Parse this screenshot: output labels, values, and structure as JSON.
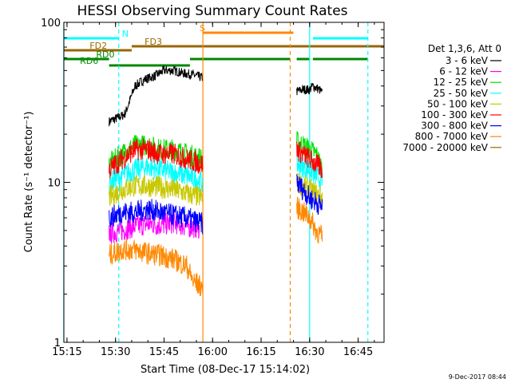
{
  "chart_data": {
    "type": "line",
    "title": "HESSI Observing Summary Count Rates",
    "xlabel": "Start Time (08-Dec-17 15:14:02)",
    "ylabel": "Count Rate (s⁻¹ detector⁻¹)",
    "y_scale": "log",
    "xlim": [
      "15:14:02",
      "16:53:00"
    ],
    "ylim": [
      1,
      100
    ],
    "x_ticks": [
      "15:15",
      "15:30",
      "15:45",
      "16:00",
      "16:15",
      "16:30",
      "16:45"
    ],
    "y_ticks": [
      "1",
      "10",
      "100"
    ],
    "legend": {
      "title": "Det 1,3,6, Att 0",
      "placement": "right",
      "entries": [
        {
          "label": "3 - 6 keV",
          "color": "#000000"
        },
        {
          "label": "6 - 12 keV",
          "color": "#ff00ff"
        },
        {
          "label": "12 - 25 keV",
          "color": "#00e000"
        },
        {
          "label": "25 - 50 keV",
          "color": "#00ffff"
        },
        {
          "label": "50 - 100 keV",
          "color": "#c8c800"
        },
        {
          "label": "100 - 300 keV",
          "color": "#ff0000"
        },
        {
          "label": "300 - 800 keV",
          "color": "#0000ff"
        },
        {
          "label": "800 - 7000 keV",
          "color": "#ff8800"
        },
        {
          "label": "7000 - 20000 keV",
          "color": "#996600"
        }
      ]
    },
    "flags": [
      {
        "label": "N",
        "color": "#00ffff",
        "segments": [
          [
            "15:14",
            "15:31"
          ],
          [
            "16:31",
            "16:48"
          ]
        ]
      },
      {
        "label": "S",
        "color": "#ff8800",
        "segments": [
          [
            "15:57",
            "16:25"
          ]
        ]
      },
      {
        "label": "FD2",
        "color": "#996600",
        "segments": [
          [
            "15:14",
            "15:35"
          ]
        ]
      },
      {
        "label": "FD3",
        "color": "#996600",
        "segments": [
          [
            "15:35",
            "16:53"
          ]
        ]
      },
      {
        "label": "RD0",
        "color": "#008800",
        "segments": [
          [
            "15:14",
            "15:28"
          ],
          [
            "15:53",
            "16:24"
          ],
          [
            "16:26",
            "16:30"
          ],
          [
            "16:31",
            "16:48"
          ]
        ]
      },
      {
        "label": "RD6",
        "color": "#008800",
        "segments": [
          [
            "15:28",
            "15:53"
          ]
        ]
      }
    ],
    "vertical_lines": [
      {
        "time": "15:14",
        "color": "#00ffff",
        "style": "solid"
      },
      {
        "time": "15:31",
        "color": "#00ffff",
        "style": "dashed"
      },
      {
        "time": "15:57",
        "color": "#ff8800",
        "style": "solid"
      },
      {
        "time": "16:24",
        "color": "#ff8800",
        "style": "dashed"
      },
      {
        "time": "16:30",
        "color": "#00ffff",
        "style": "solid"
      },
      {
        "time": "16:48",
        "color": "#00ffff",
        "style": "dashed"
      }
    ],
    "series": [
      {
        "name": "3 - 6 keV",
        "color": "#000000",
        "segments": [
          {
            "times": [
              "15:28",
              "15:30",
              "15:32",
              "15:33",
              "15:36",
              "15:39",
              "15:42",
              "15:45",
              "15:48",
              "15:51",
              "15:54",
              "15:57"
            ],
            "values": [
              24,
              25,
              26,
              27,
              40,
              44,
              46,
              50,
              50,
              48,
              47,
              45
            ]
          },
          {
            "times": [
              "16:26",
              "16:28",
              "16:30",
              "16:31",
              "16:33",
              "16:34"
            ],
            "values": [
              37,
              38,
              38,
              40,
              38,
              36
            ]
          }
        ]
      },
      {
        "name": "6 - 12 keV",
        "color": "#ff00ff",
        "segments": [
          {
            "times": [
              "15:28",
              "15:32",
              "15:36",
              "15:40",
              "15:44",
              "15:48",
              "15:52",
              "15:56"
            ],
            "values": [
              4.8,
              5.0,
              5.3,
              5.5,
              5.4,
              5.6,
              5.3,
              5.2
            ]
          }
        ]
      },
      {
        "name": "12 - 25 keV",
        "color": "#00e000",
        "segments": [
          {
            "times": [
              "15:28",
              "15:32",
              "15:36",
              "15:40",
              "15:44",
              "15:48",
              "15:52",
              "15:57"
            ],
            "values": [
              13,
              15,
              17,
              17,
              16,
              16,
              15,
              14
            ]
          },
          {
            "times": [
              "16:26",
              "16:28",
              "16:30",
              "16:32",
              "16:34"
            ],
            "values": [
              18,
              17,
              16,
              15,
              12
            ]
          }
        ]
      },
      {
        "name": "25 - 50 keV",
        "color": "#00ffff",
        "segments": [
          {
            "times": [
              "15:28",
              "15:32",
              "15:36",
              "15:40",
              "15:44",
              "15:48",
              "15:52",
              "15:57"
            ],
            "values": [
              10,
              11,
              12,
              12.5,
              12,
              11.5,
              11,
              10
            ]
          },
          {
            "times": [
              "16:26",
              "16:28",
              "16:30",
              "16:32",
              "16:34"
            ],
            "values": [
              13,
              12.5,
              12,
              11,
              10
            ]
          }
        ]
      },
      {
        "name": "50 - 100 keV",
        "color": "#c8c800",
        "segments": [
          {
            "times": [
              "15:28",
              "15:32",
              "15:36",
              "15:40",
              "15:44",
              "15:48",
              "15:52",
              "15:57"
            ],
            "values": [
              8,
              9,
              9.5,
              9.5,
              9.3,
              9,
              8.5,
              8
            ]
          },
          {
            "times": [
              "16:26",
              "16:28",
              "16:30",
              "16:32",
              "16:34"
            ],
            "values": [
              10,
              9.5,
              9,
              8.5,
              8
            ]
          }
        ]
      },
      {
        "name": "100 - 300 keV",
        "color": "#ff0000",
        "segments": [
          {
            "times": [
              "15:28",
              "15:32",
              "15:36",
              "15:40",
              "15:44",
              "15:48",
              "15:52",
              "15:57"
            ],
            "values": [
              12,
              14,
              16,
              16,
              15,
              15,
              14,
              13
            ]
          },
          {
            "times": [
              "16:26",
              "16:28",
              "16:30",
              "16:32",
              "16:34"
            ],
            "values": [
              16,
              15,
              14,
              13,
              12
            ]
          }
        ]
      },
      {
        "name": "300 - 800 keV",
        "color": "#0000ff",
        "segments": [
          {
            "times": [
              "15:28",
              "15:32",
              "15:36",
              "15:40",
              "15:44",
              "15:48",
              "15:52",
              "15:57"
            ],
            "values": [
              6,
              6.5,
              6.5,
              6.8,
              6.5,
              6.2,
              6,
              5.5
            ]
          },
          {
            "times": [
              "16:26",
              "16:28",
              "16:30",
              "16:32",
              "16:34"
            ],
            "values": [
              10,
              9,
              8,
              7.5,
              7
            ]
          }
        ]
      },
      {
        "name": "800 - 7000 keV",
        "color": "#ff8800",
        "segments": [
          {
            "times": [
              "15:28",
              "15:32",
              "15:36",
              "15:40",
              "15:44",
              "15:48",
              "15:52",
              "15:54",
              "15:57"
            ],
            "values": [
              3.5,
              3.8,
              3.8,
              3.6,
              3.5,
              3.3,
              3.0,
              2.4,
              2.2
            ]
          },
          {
            "times": [
              "16:26",
              "16:28",
              "16:30",
              "16:32",
              "16:34"
            ],
            "values": [
              7,
              6.5,
              6,
              5,
              4.5
            ]
          }
        ]
      },
      {
        "name": "7000 - 20000 keV",
        "color": "#996600",
        "segments": []
      }
    ],
    "footer_date": "9-Dec-2017 08:44"
  }
}
